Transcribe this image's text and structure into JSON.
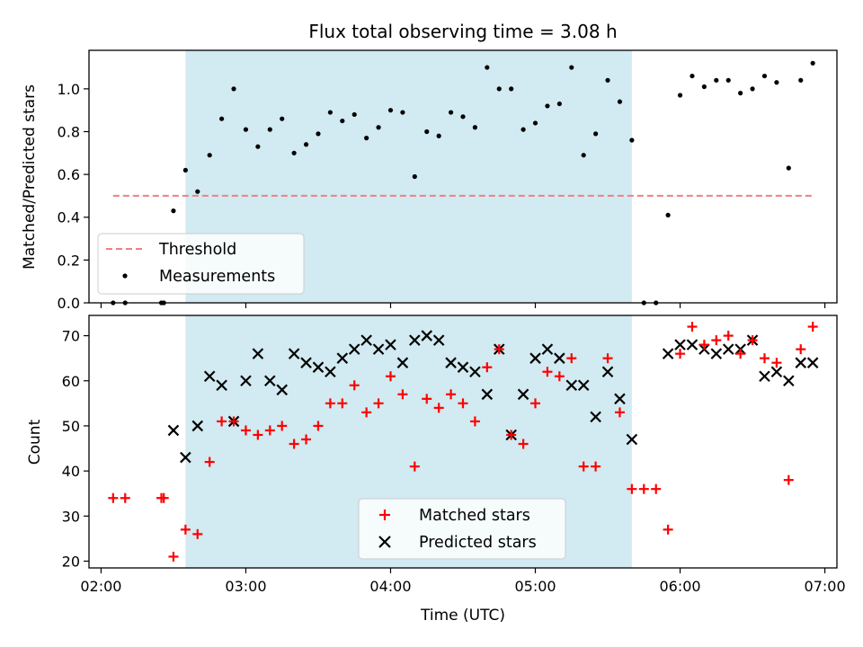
{
  "chart_data": [
    {
      "type": "scatter",
      "title": "Flux total observing time = 3.08 h",
      "xlabel": "",
      "ylabel": "Matched/Predicted stars",
      "ylim": [
        0,
        1.18
      ],
      "yticks": [
        "0.0",
        "0.2",
        "0.4",
        "0.6",
        "0.8",
        "1.0"
      ],
      "shaded_span": [
        "02:35",
        "05:40"
      ],
      "shade_color": "#add8e6",
      "legend_position": "lower-left",
      "threshold": {
        "name": "Threshold",
        "value": 0.5,
        "x_range": [
          "02:05",
          "06:55"
        ],
        "color": "#f08080"
      },
      "series": [
        {
          "name": "Measurements",
          "color": "#000000",
          "x": [
            "02:05",
            "02:10",
            "02:25",
            "02:26",
            "02:30",
            "02:35",
            "02:40",
            "02:45",
            "02:50",
            "02:55",
            "03:00",
            "03:05",
            "03:10",
            "03:15",
            "03:20",
            "03:25",
            "03:30",
            "03:35",
            "03:40",
            "03:45",
            "03:50",
            "03:55",
            "04:00",
            "04:05",
            "04:10",
            "04:15",
            "04:20",
            "04:25",
            "04:30",
            "04:35",
            "04:40",
            "04:45",
            "04:50",
            "04:55",
            "05:00",
            "05:05",
            "05:10",
            "05:15",
            "05:20",
            "05:25",
            "05:30",
            "05:35",
            "05:40",
            "05:45",
            "05:50",
            "05:55",
            "06:00",
            "06:05",
            "06:10",
            "06:15",
            "06:20",
            "06:25",
            "06:30",
            "06:35",
            "06:40",
            "06:45",
            "06:50",
            "06:55"
          ],
          "values": [
            0.0,
            0.0,
            0.0,
            0.0,
            0.43,
            0.62,
            0.52,
            0.69,
            0.86,
            1.0,
            0.81,
            0.73,
            0.81,
            0.86,
            0.7,
            0.74,
            0.79,
            0.89,
            0.85,
            0.88,
            0.77,
            0.82,
            0.9,
            0.89,
            0.59,
            0.8,
            0.78,
            0.89,
            0.87,
            0.82,
            1.1,
            1.0,
            1.0,
            0.81,
            0.84,
            0.92,
            0.93,
            1.1,
            0.69,
            0.79,
            1.04,
            0.94,
            0.76,
            0.0,
            0.0,
            0.41,
            0.97,
            1.06,
            1.01,
            1.04,
            1.04,
            0.98,
            1.0,
            1.06,
            1.03,
            0.63,
            1.04,
            1.12
          ]
        }
      ]
    },
    {
      "type": "scatter",
      "title": "",
      "xlabel": "Time (UTC)",
      "ylabel": "Count",
      "ylim": [
        18.5,
        74.5
      ],
      "yticks": [
        "20",
        "30",
        "40",
        "50",
        "60",
        "70"
      ],
      "xlim": [
        "01:55",
        "07:05"
      ],
      "xticks": [
        "02:00",
        "03:00",
        "04:00",
        "05:00",
        "06:00",
        "07:00"
      ],
      "shaded_span": [
        "02:35",
        "05:40"
      ],
      "shade_color": "#add8e6",
      "legend_position": "lower-center",
      "series": [
        {
          "name": "Matched stars",
          "marker": "plus",
          "color": "#ff0000",
          "x": [
            "02:05",
            "02:10",
            "02:25",
            "02:26",
            "02:30",
            "02:35",
            "02:40",
            "02:45",
            "02:50",
            "02:55",
            "03:00",
            "03:05",
            "03:10",
            "03:15",
            "03:20",
            "03:25",
            "03:30",
            "03:35",
            "03:40",
            "03:45",
            "03:50",
            "03:55",
            "04:00",
            "04:05",
            "04:10",
            "04:15",
            "04:20",
            "04:25",
            "04:30",
            "04:35",
            "04:40",
            "04:45",
            "04:50",
            "04:55",
            "05:00",
            "05:05",
            "05:10",
            "05:15",
            "05:20",
            "05:25",
            "05:30",
            "05:35",
            "05:40",
            "05:45",
            "05:50",
            "05:55",
            "06:00",
            "06:05",
            "06:10",
            "06:15",
            "06:20",
            "06:25",
            "06:30",
            "06:35",
            "06:40",
            "06:45",
            "06:50",
            "06:55"
          ],
          "values": [
            34,
            34,
            34,
            34,
            21,
            27,
            26,
            42,
            51,
            51,
            49,
            48,
            49,
            50,
            46,
            47,
            50,
            55,
            55,
            59,
            53,
            55,
            61,
            57,
            41,
            56,
            54,
            57,
            55,
            51,
            63,
            67,
            48,
            46,
            55,
            62,
            61,
            65,
            41,
            41,
            65,
            53,
            36,
            36,
            36,
            27,
            66,
            72,
            68,
            69,
            70,
            66,
            69,
            65,
            64,
            38,
            67,
            72
          ]
        },
        {
          "name": "Predicted stars",
          "marker": "x",
          "color": "#000000",
          "x": [
            "02:30",
            "02:35",
            "02:40",
            "02:45",
            "02:50",
            "02:55",
            "03:00",
            "03:05",
            "03:10",
            "03:15",
            "03:20",
            "03:25",
            "03:30",
            "03:35",
            "03:40",
            "03:45",
            "03:50",
            "03:55",
            "04:00",
            "04:05",
            "04:10",
            "04:15",
            "04:20",
            "04:25",
            "04:30",
            "04:35",
            "04:40",
            "04:45",
            "04:50",
            "04:55",
            "05:00",
            "05:05",
            "05:10",
            "05:15",
            "05:20",
            "05:25",
            "05:30",
            "05:35",
            "05:40",
            "05:55",
            "06:00",
            "06:05",
            "06:10",
            "06:15",
            "06:20",
            "06:25",
            "06:30",
            "06:35",
            "06:40",
            "06:45",
            "06:50",
            "06:55"
          ],
          "values": [
            49,
            43,
            50,
            61,
            59,
            51,
            60,
            66,
            60,
            58,
            66,
            64,
            63,
            62,
            65,
            67,
            69,
            67,
            68,
            64,
            69,
            70,
            69,
            64,
            63,
            62,
            57,
            67,
            48,
            57,
            65,
            67,
            65,
            59,
            59,
            52,
            62,
            56,
            47,
            66,
            68,
            68,
            67,
            66,
            67,
            67,
            69,
            61,
            62,
            60,
            64,
            64
          ]
        }
      ]
    }
  ]
}
